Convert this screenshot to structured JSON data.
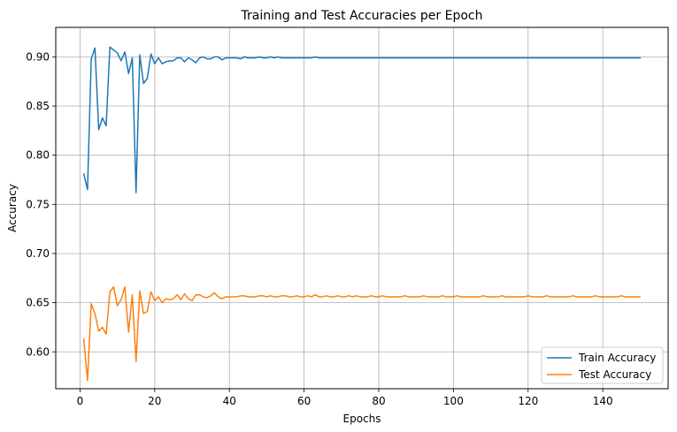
{
  "chart_data": {
    "type": "line",
    "title": "Training and Test Accuracies per Epoch",
    "xlabel": "Epochs",
    "ylabel": "Accuracy",
    "xlim": [
      -6.5,
      157.5
    ],
    "ylim": [
      0.5625,
      0.93
    ],
    "xticks": [
      0,
      20,
      40,
      60,
      80,
      100,
      120,
      140
    ],
    "yticks": [
      0.6,
      0.65,
      0.7,
      0.75,
      0.8,
      0.85,
      0.9
    ],
    "ytick_labels": [
      "0.60",
      "0.65",
      "0.70",
      "0.75",
      "0.80",
      "0.85",
      "0.90"
    ],
    "grid": true,
    "legend_position": "lower-right",
    "series": [
      {
        "name": "Train Accuracy",
        "color": "#1f77b4",
        "x_start": 1,
        "values": [
          0.781,
          0.765,
          0.898,
          0.909,
          0.826,
          0.838,
          0.83,
          0.91,
          0.907,
          0.904,
          0.896,
          0.905,
          0.883,
          0.899,
          0.762,
          0.902,
          0.873,
          0.878,
          0.903,
          0.893,
          0.899,
          0.893,
          0.895,
          0.896,
          0.896,
          0.899,
          0.899,
          0.895,
          0.899,
          0.897,
          0.894,
          0.899,
          0.9,
          0.898,
          0.898,
          0.9,
          0.9,
          0.897,
          0.899,
          0.899,
          0.899,
          0.899,
          0.898,
          0.9,
          0.899,
          0.899,
          0.899,
          0.9,
          0.899,
          0.899,
          0.9,
          0.899,
          0.9,
          0.899,
          0.899,
          0.899,
          0.899,
          0.899,
          0.899,
          0.899,
          0.899,
          0.899,
          0.9,
          0.899,
          0.899,
          0.899,
          0.899,
          0.899,
          0.899,
          0.899,
          0.899,
          0.899,
          0.899,
          0.899,
          0.899,
          0.899,
          0.899,
          0.899,
          0.899,
          0.899,
          0.899,
          0.899,
          0.899,
          0.899,
          0.899,
          0.899,
          0.899,
          0.899,
          0.899,
          0.899,
          0.899,
          0.899,
          0.899,
          0.899,
          0.899,
          0.899,
          0.899,
          0.899,
          0.899,
          0.899,
          0.899,
          0.899,
          0.899,
          0.899,
          0.899,
          0.899,
          0.899,
          0.899,
          0.899,
          0.899,
          0.899,
          0.899,
          0.899,
          0.899,
          0.899,
          0.899,
          0.899,
          0.899,
          0.899,
          0.899,
          0.899,
          0.899,
          0.899,
          0.899,
          0.899,
          0.899,
          0.899,
          0.899,
          0.899,
          0.899,
          0.899,
          0.899,
          0.899,
          0.899,
          0.899,
          0.899,
          0.899,
          0.899,
          0.899,
          0.899,
          0.899,
          0.899,
          0.899,
          0.899,
          0.899,
          0.899,
          0.899,
          0.899,
          0.899,
          0.899
        ]
      },
      {
        "name": "Test Accuracy",
        "color": "#ff7f0e",
        "x_start": 1,
        "values": [
          0.613,
          0.571,
          0.649,
          0.639,
          0.621,
          0.625,
          0.618,
          0.661,
          0.666,
          0.647,
          0.653,
          0.666,
          0.62,
          0.658,
          0.59,
          0.662,
          0.639,
          0.641,
          0.661,
          0.652,
          0.656,
          0.65,
          0.654,
          0.653,
          0.654,
          0.658,
          0.653,
          0.659,
          0.654,
          0.652,
          0.658,
          0.658,
          0.656,
          0.655,
          0.657,
          0.66,
          0.656,
          0.654,
          0.656,
          0.656,
          0.656,
          0.656,
          0.657,
          0.657,
          0.656,
          0.656,
          0.656,
          0.657,
          0.657,
          0.656,
          0.657,
          0.656,
          0.656,
          0.657,
          0.657,
          0.656,
          0.656,
          0.657,
          0.656,
          0.656,
          0.657,
          0.656,
          0.658,
          0.656,
          0.656,
          0.657,
          0.656,
          0.656,
          0.657,
          0.656,
          0.656,
          0.657,
          0.656,
          0.657,
          0.656,
          0.656,
          0.656,
          0.657,
          0.656,
          0.656,
          0.657,
          0.656,
          0.656,
          0.656,
          0.656,
          0.656,
          0.657,
          0.656,
          0.656,
          0.656,
          0.656,
          0.657,
          0.656,
          0.656,
          0.656,
          0.656,
          0.657,
          0.656,
          0.656,
          0.656,
          0.657,
          0.656,
          0.656,
          0.656,
          0.656,
          0.656,
          0.656,
          0.657,
          0.656,
          0.656,
          0.656,
          0.656,
          0.657,
          0.656,
          0.656,
          0.656,
          0.656,
          0.656,
          0.656,
          0.657,
          0.656,
          0.656,
          0.656,
          0.656,
          0.657,
          0.656,
          0.656,
          0.656,
          0.656,
          0.656,
          0.656,
          0.657,
          0.656,
          0.656,
          0.656,
          0.656,
          0.656,
          0.657,
          0.656,
          0.656,
          0.656,
          0.656,
          0.656,
          0.656,
          0.657,
          0.656,
          0.656,
          0.656,
          0.656,
          0.656
        ]
      }
    ]
  }
}
